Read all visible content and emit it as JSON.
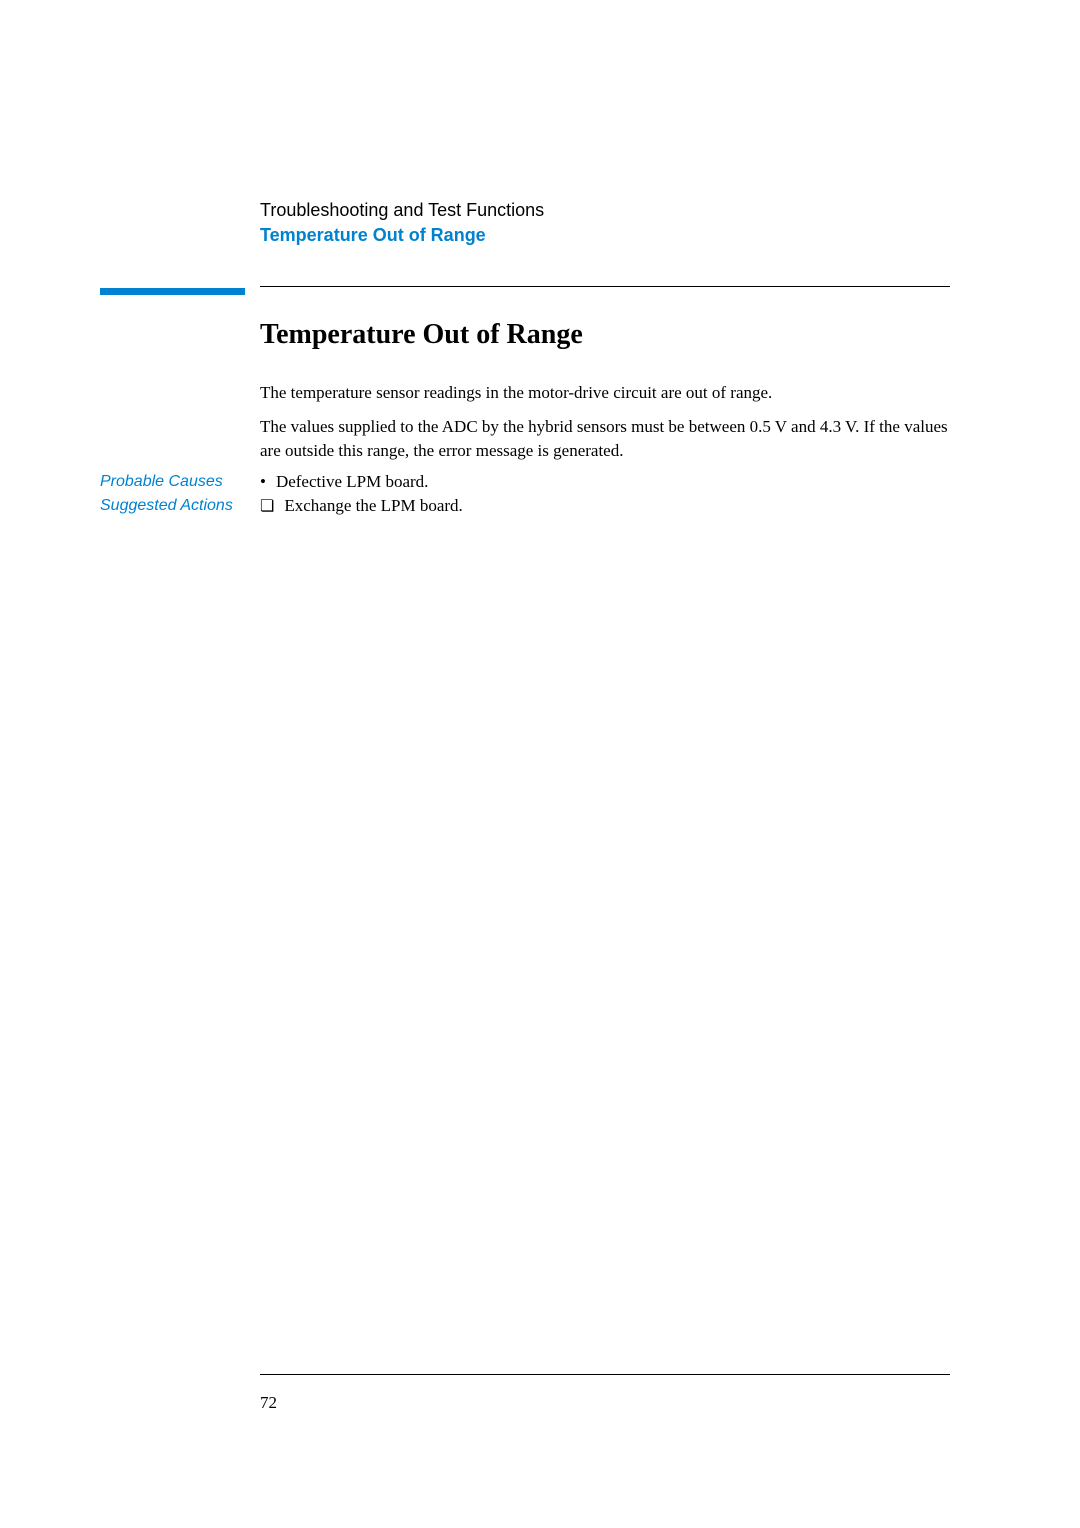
{
  "header": {
    "section": "Troubleshooting and Test Functions",
    "subsection": "Temperature Out of Range"
  },
  "main": {
    "title": "Temperature Out of Range",
    "paragraph1": "The temperature sensor readings in the motor-drive circuit are out of range.",
    "paragraph2": "The values supplied to the ADC by the hybrid sensors must be between 0.5 V and 4.3 V. If the values are outside this range, the error message is generated."
  },
  "probable_causes": {
    "label": "Probable Causes",
    "items": [
      "Defective LPM board."
    ]
  },
  "suggested_actions": {
    "label": "Suggested Actions",
    "items": [
      "Exchange the LPM board."
    ]
  },
  "footer": {
    "page_number": "72"
  },
  "colors": {
    "accent": "#0082d1",
    "text": "#000000",
    "background": "#ffffff"
  },
  "typography": {
    "body_font": "Georgia, Times New Roman, serif",
    "label_font": "Arial, Helvetica, sans-serif",
    "title_fontsize": 28,
    "body_fontsize": 17,
    "header_fontsize": 18,
    "label_fontsize": 16
  }
}
